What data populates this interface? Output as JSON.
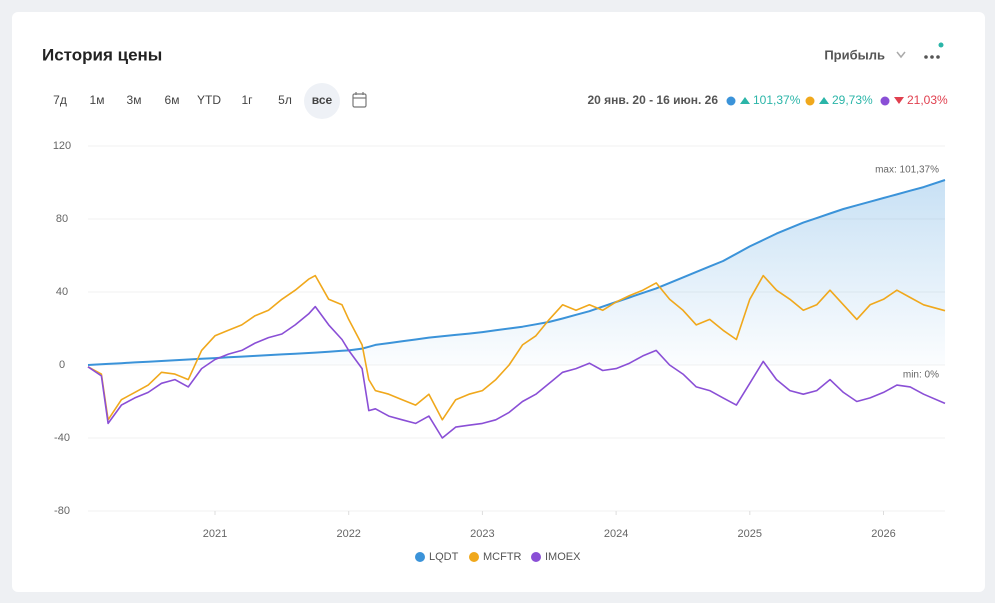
{
  "header": {
    "title": "История цены",
    "periods": [
      "7д",
      "1м",
      "3м",
      "6м",
      "YTD",
      "1г",
      "5л",
      "все"
    ],
    "active_period": 7,
    "mode": "Прибыль",
    "date_range": "20 янв. 20 - 16 июн. 26"
  },
  "chart_data": {
    "type": "line",
    "x": [
      2020.05,
      2020.15,
      2020.2,
      2020.3,
      2020.4,
      2020.5,
      2020.6,
      2020.7,
      2020.8,
      2020.9,
      2021.0,
      2021.1,
      2021.2,
      2021.3,
      2021.4,
      2021.5,
      2021.6,
      2021.7,
      2021.75,
      2021.85,
      2021.95,
      2022.0,
      2022.1,
      2022.15,
      2022.2,
      2022.3,
      2022.4,
      2022.5,
      2022.6,
      2022.7,
      2022.8,
      2022.9,
      2023.0,
      2023.1,
      2023.2,
      2023.3,
      2023.4,
      2023.5,
      2023.6,
      2023.7,
      2023.8,
      2023.9,
      2024.0,
      2024.1,
      2024.2,
      2024.3,
      2024.4,
      2024.5,
      2024.6,
      2024.7,
      2024.8,
      2024.9,
      2025.0,
      2025.1,
      2025.2,
      2025.3,
      2025.4,
      2025.5,
      2025.6,
      2025.7,
      2025.8,
      2025.9,
      2026.0,
      2026.1,
      2026.2,
      2026.3,
      2026.46
    ],
    "series": [
      {
        "name": "LQDT",
        "color": "#3b93d9",
        "change_label": "101,37%",
        "change_direction": "up",
        "area": true,
        "values": [
          0,
          0.4,
          0.6,
          1,
          1.4,
          1.8,
          2.2,
          2.6,
          3,
          3.4,
          3.8,
          4.2,
          4.6,
          5,
          5.4,
          5.8,
          6.2,
          6.6,
          6.8,
          7.3,
          7.8,
          8,
          9,
          10,
          11,
          12,
          13,
          14,
          15,
          15.8,
          16.5,
          17.2,
          18,
          19,
          20,
          21,
          22.3,
          23.6,
          25.5,
          27.5,
          29.5,
          32,
          34.5,
          37,
          39.5,
          42,
          45,
          48,
          51,
          54,
          57,
          61,
          65,
          68.5,
          72,
          75,
          78,
          80.5,
          83,
          85.5,
          87.5,
          89.5,
          91.5,
          93.5,
          95.5,
          97.5,
          101.37
        ]
      },
      {
        "name": "MCFTR",
        "color": "#f0a81c",
        "change_label": "29,73%",
        "change_direction": "up",
        "values": [
          -1,
          -5,
          -30,
          -19,
          -15,
          -11,
          -4,
          -5,
          -8,
          8,
          16,
          19,
          22,
          27,
          30,
          36,
          41,
          47,
          49,
          36,
          33,
          25,
          11,
          -8,
          -14,
          -16,
          -19,
          -22,
          -16,
          -30,
          -19,
          -16,
          -14,
          -8,
          0,
          11,
          16,
          25,
          33,
          30,
          33,
          30,
          34.5,
          38,
          41,
          45,
          36,
          30,
          22,
          25,
          19,
          14,
          36,
          49,
          41,
          36,
          30,
          33,
          41,
          33,
          25,
          33,
          36,
          41,
          37,
          33,
          29.73
        ]
      },
      {
        "name": "IMOEX",
        "color": "#8a4fd6",
        "change_label": "21,03%",
        "change_direction": "down",
        "values": [
          -1,
          -6,
          -32,
          -22,
          -18,
          -15,
          -10,
          -8,
          -12,
          -2,
          3,
          6,
          8,
          12,
          15,
          17,
          22,
          28,
          32,
          22,
          14,
          8,
          -2,
          -25,
          -24,
          -28,
          -30,
          -32,
          -28,
          -40,
          -34,
          -33,
          -32,
          -30,
          -26,
          -20,
          -16,
          -10,
          -4,
          -2,
          1,
          -3,
          -2,
          1,
          5,
          8,
          0,
          -5,
          -12,
          -14,
          -18,
          -22,
          -10,
          2,
          -8,
          -14,
          -16,
          -14,
          -8,
          -15,
          -20,
          -18,
          -15,
          -11,
          -12,
          -16,
          -21.03
        ]
      }
    ],
    "xlim": [
      2020.05,
      2026.46
    ],
    "xticks": [
      2021,
      2022,
      2023,
      2024,
      2025,
      2026
    ],
    "ylim": [
      -80,
      120
    ],
    "yticks": [
      120,
      80,
      40,
      0,
      -40,
      -80
    ],
    "grid": true,
    "annotations": [
      "max: 101,37%",
      "min: 0%"
    ]
  }
}
